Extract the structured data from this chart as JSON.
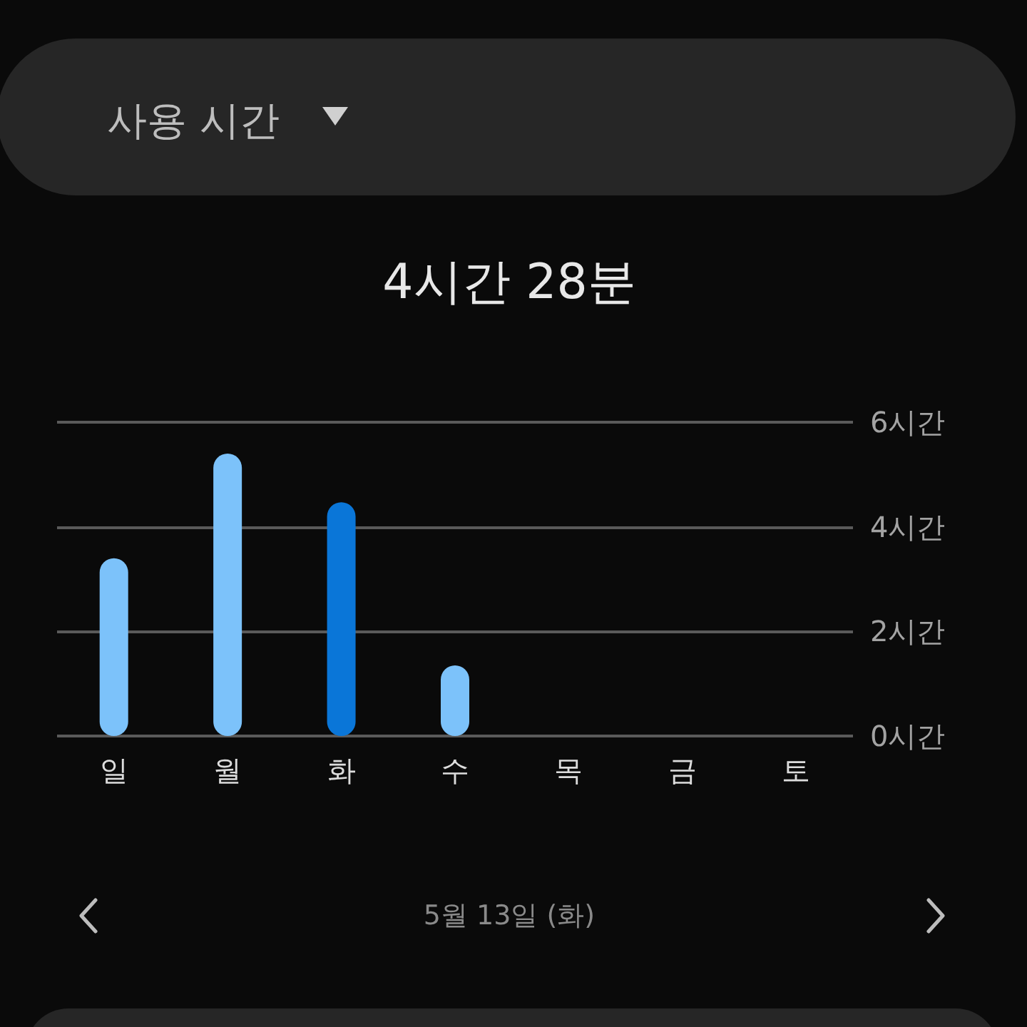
{
  "chart_data": {
    "type": "bar",
    "title": "사용 시간",
    "subtitle": "4시간 28분",
    "annotations": [
      "5월 13일 (화)"
    ],
    "categories": [
      "일",
      "월",
      "화",
      "수",
      "목",
      "금",
      "토"
    ],
    "values": [
      3.4,
      5.4,
      4.47,
      1.35,
      null,
      null,
      null
    ],
    "colors": [
      "#7cc2fa",
      "#7cc2fa",
      "#0a76d8",
      "#7cc2fa",
      "#7cc2fa",
      "#7cc2fa",
      "#7cc2fa"
    ],
    "ylim": [
      0,
      6
    ],
    "yticks": [
      {
        "value": 0,
        "label": "0시간"
      },
      {
        "value": 2,
        "label": "2시간"
      },
      {
        "value": 4,
        "label": "4시간"
      },
      {
        "value": 6,
        "label": "6시간"
      }
    ],
    "grid": "y"
  }
}
